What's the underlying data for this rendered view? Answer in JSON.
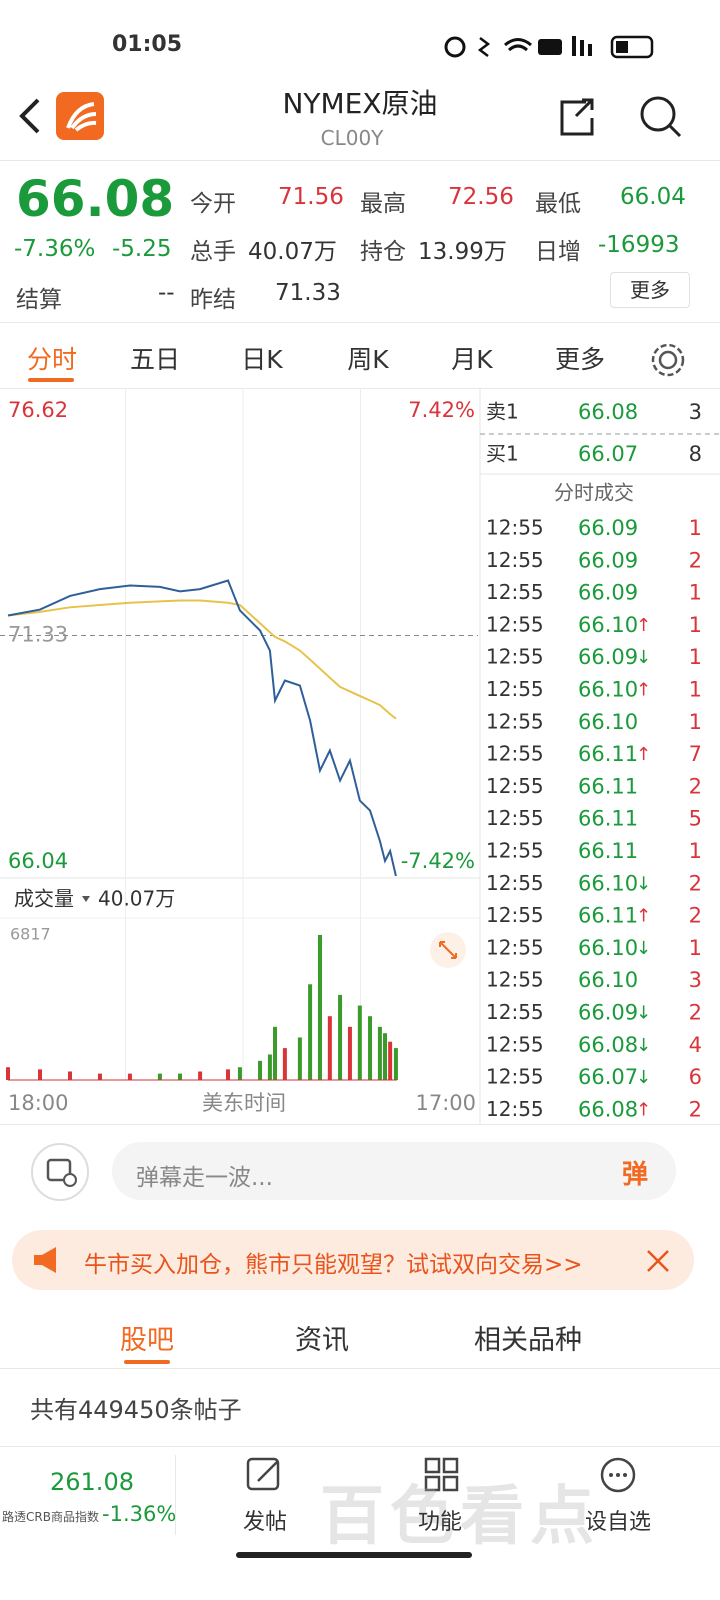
{
  "status_bar": {
    "time": "01:05"
  },
  "header": {
    "title": "NYMEX原油",
    "code": "CL00Y"
  },
  "quote": {
    "price": "66.08",
    "change_pct": "-7.36%",
    "change": "-5.25",
    "fields": [
      {
        "label": "今开",
        "value": "71.56",
        "tone": "up"
      },
      {
        "label": "最高",
        "value": "72.56",
        "tone": "up"
      },
      {
        "label": "最低",
        "value": "66.04",
        "tone": "down"
      },
      {
        "label": "总手",
        "value": "40.07万",
        "tone": "flat"
      },
      {
        "label": "持仓",
        "value": "13.99万",
        "tone": "flat"
      },
      {
        "label": "日增",
        "value": "-16993",
        "tone": "down"
      },
      {
        "label": "结算",
        "value": "--",
        "tone": "flat"
      },
      {
        "label": "昨结",
        "value": "71.33",
        "tone": "flat"
      }
    ],
    "more": "更多"
  },
  "tabs": [
    "分时",
    "五日",
    "日K",
    "周K",
    "月K",
    "更多"
  ],
  "chart": {
    "price_axis": [
      {
        "value": 76.62,
        "label": "76.62"
      },
      {
        "value": 71.33,
        "label": "71.33"
      },
      {
        "value": 66.04,
        "label": "66.04"
      }
    ],
    "pct_axis": [
      "7.42%",
      "-7.42%"
    ],
    "ylim": [
      66.04,
      76.62
    ],
    "xlim": [
      0,
      1380
    ],
    "x": [
      0,
      94,
      182,
      270,
      358,
      446,
      505,
      564,
      646,
      681,
      740,
      769,
      784,
      813,
      857,
      887,
      916,
      945,
      975,
      1004,
      1033,
      1063,
      1092,
      1107,
      1122,
      1139
    ],
    "price": [
      71.77,
      71.9,
      72.2,
      72.35,
      72.43,
      72.4,
      72.3,
      72.35,
      72.54,
      71.88,
      71.44,
      71.0,
      69.9,
      70.34,
      70.23,
      69.46,
      68.36,
      68.8,
      68.14,
      68.58,
      67.7,
      67.48,
      66.81,
      66.37,
      66.59,
      66.04
    ],
    "avg": [
      71.77,
      71.85,
      71.95,
      72.0,
      72.05,
      72.08,
      72.1,
      72.1,
      72.05,
      72.0,
      71.6,
      71.4,
      71.3,
      71.2,
      71.0,
      70.8,
      70.6,
      70.4,
      70.2,
      70.1,
      70.0,
      69.9,
      69.8,
      69.7,
      69.6,
      69.5
    ],
    "volume_label": "成交量",
    "volume_total": "40.07万",
    "vol_axis": {
      "value": 6817,
      "label": "6817"
    },
    "vol_ylim": [
      0,
      6817
    ],
    "volume": [
      600,
      500,
      400,
      300,
      300,
      300,
      300,
      400,
      500,
      600,
      900,
      1200,
      2500,
      1500,
      2000,
      4500,
      6817,
      3000,
      4000,
      2500,
      3500,
      3000,
      2500,
      2200,
      1800,
      1500
    ],
    "x_labels": [
      "18:00",
      "美东时间",
      "17:00"
    ]
  },
  "order_book": [
    {
      "side": "卖1",
      "price": "66.08",
      "volume": "3"
    },
    {
      "side": "买1",
      "price": "66.07",
      "volume": "8"
    }
  ],
  "trades_title": "分时成交",
  "trades": [
    [
      "12:55",
      "66.09",
      "",
      "1"
    ],
    [
      "12:55",
      "66.09",
      "",
      "2"
    ],
    [
      "12:55",
      "66.09",
      "",
      "1"
    ],
    [
      "12:55",
      "66.10",
      "↑",
      "1"
    ],
    [
      "12:55",
      "66.09",
      "↓",
      "1"
    ],
    [
      "12:55",
      "66.10",
      "↑",
      "1"
    ],
    [
      "12:55",
      "66.10",
      "",
      "1"
    ],
    [
      "12:55",
      "66.11",
      "↑",
      "7"
    ],
    [
      "12:55",
      "66.11",
      "",
      "2"
    ],
    [
      "12:55",
      "66.11",
      "",
      "5"
    ],
    [
      "12:55",
      "66.11",
      "",
      "1"
    ],
    [
      "12:55",
      "66.10",
      "↓",
      "2"
    ],
    [
      "12:55",
      "66.11",
      "↑",
      "2"
    ],
    [
      "12:55",
      "66.10",
      "↓",
      "1"
    ],
    [
      "12:55",
      "66.10",
      "",
      "3"
    ],
    [
      "12:55",
      "66.09",
      "↓",
      "2"
    ],
    [
      "12:55",
      "66.08",
      "↓",
      "4"
    ],
    [
      "12:55",
      "66.07",
      "↓",
      "6"
    ],
    [
      "12:55",
      "66.08",
      "↑",
      "2"
    ]
  ],
  "comment": {
    "placeholder": "弹幕走一波...",
    "button": "弹"
  },
  "promo": "牛市买入加仓，熊市只能观望？试试双向交易>>",
  "section_tabs": [
    "股吧",
    "资讯",
    "相关品种"
  ],
  "post_count": "共有449450条帖子",
  "bottom_bar": {
    "index_value": "261.08",
    "index_name": "路透CRB商品指数",
    "index_change": "-1.36%",
    "actions": [
      "发帖",
      "功能",
      "设自选"
    ]
  },
  "watermark": "百色看点"
}
